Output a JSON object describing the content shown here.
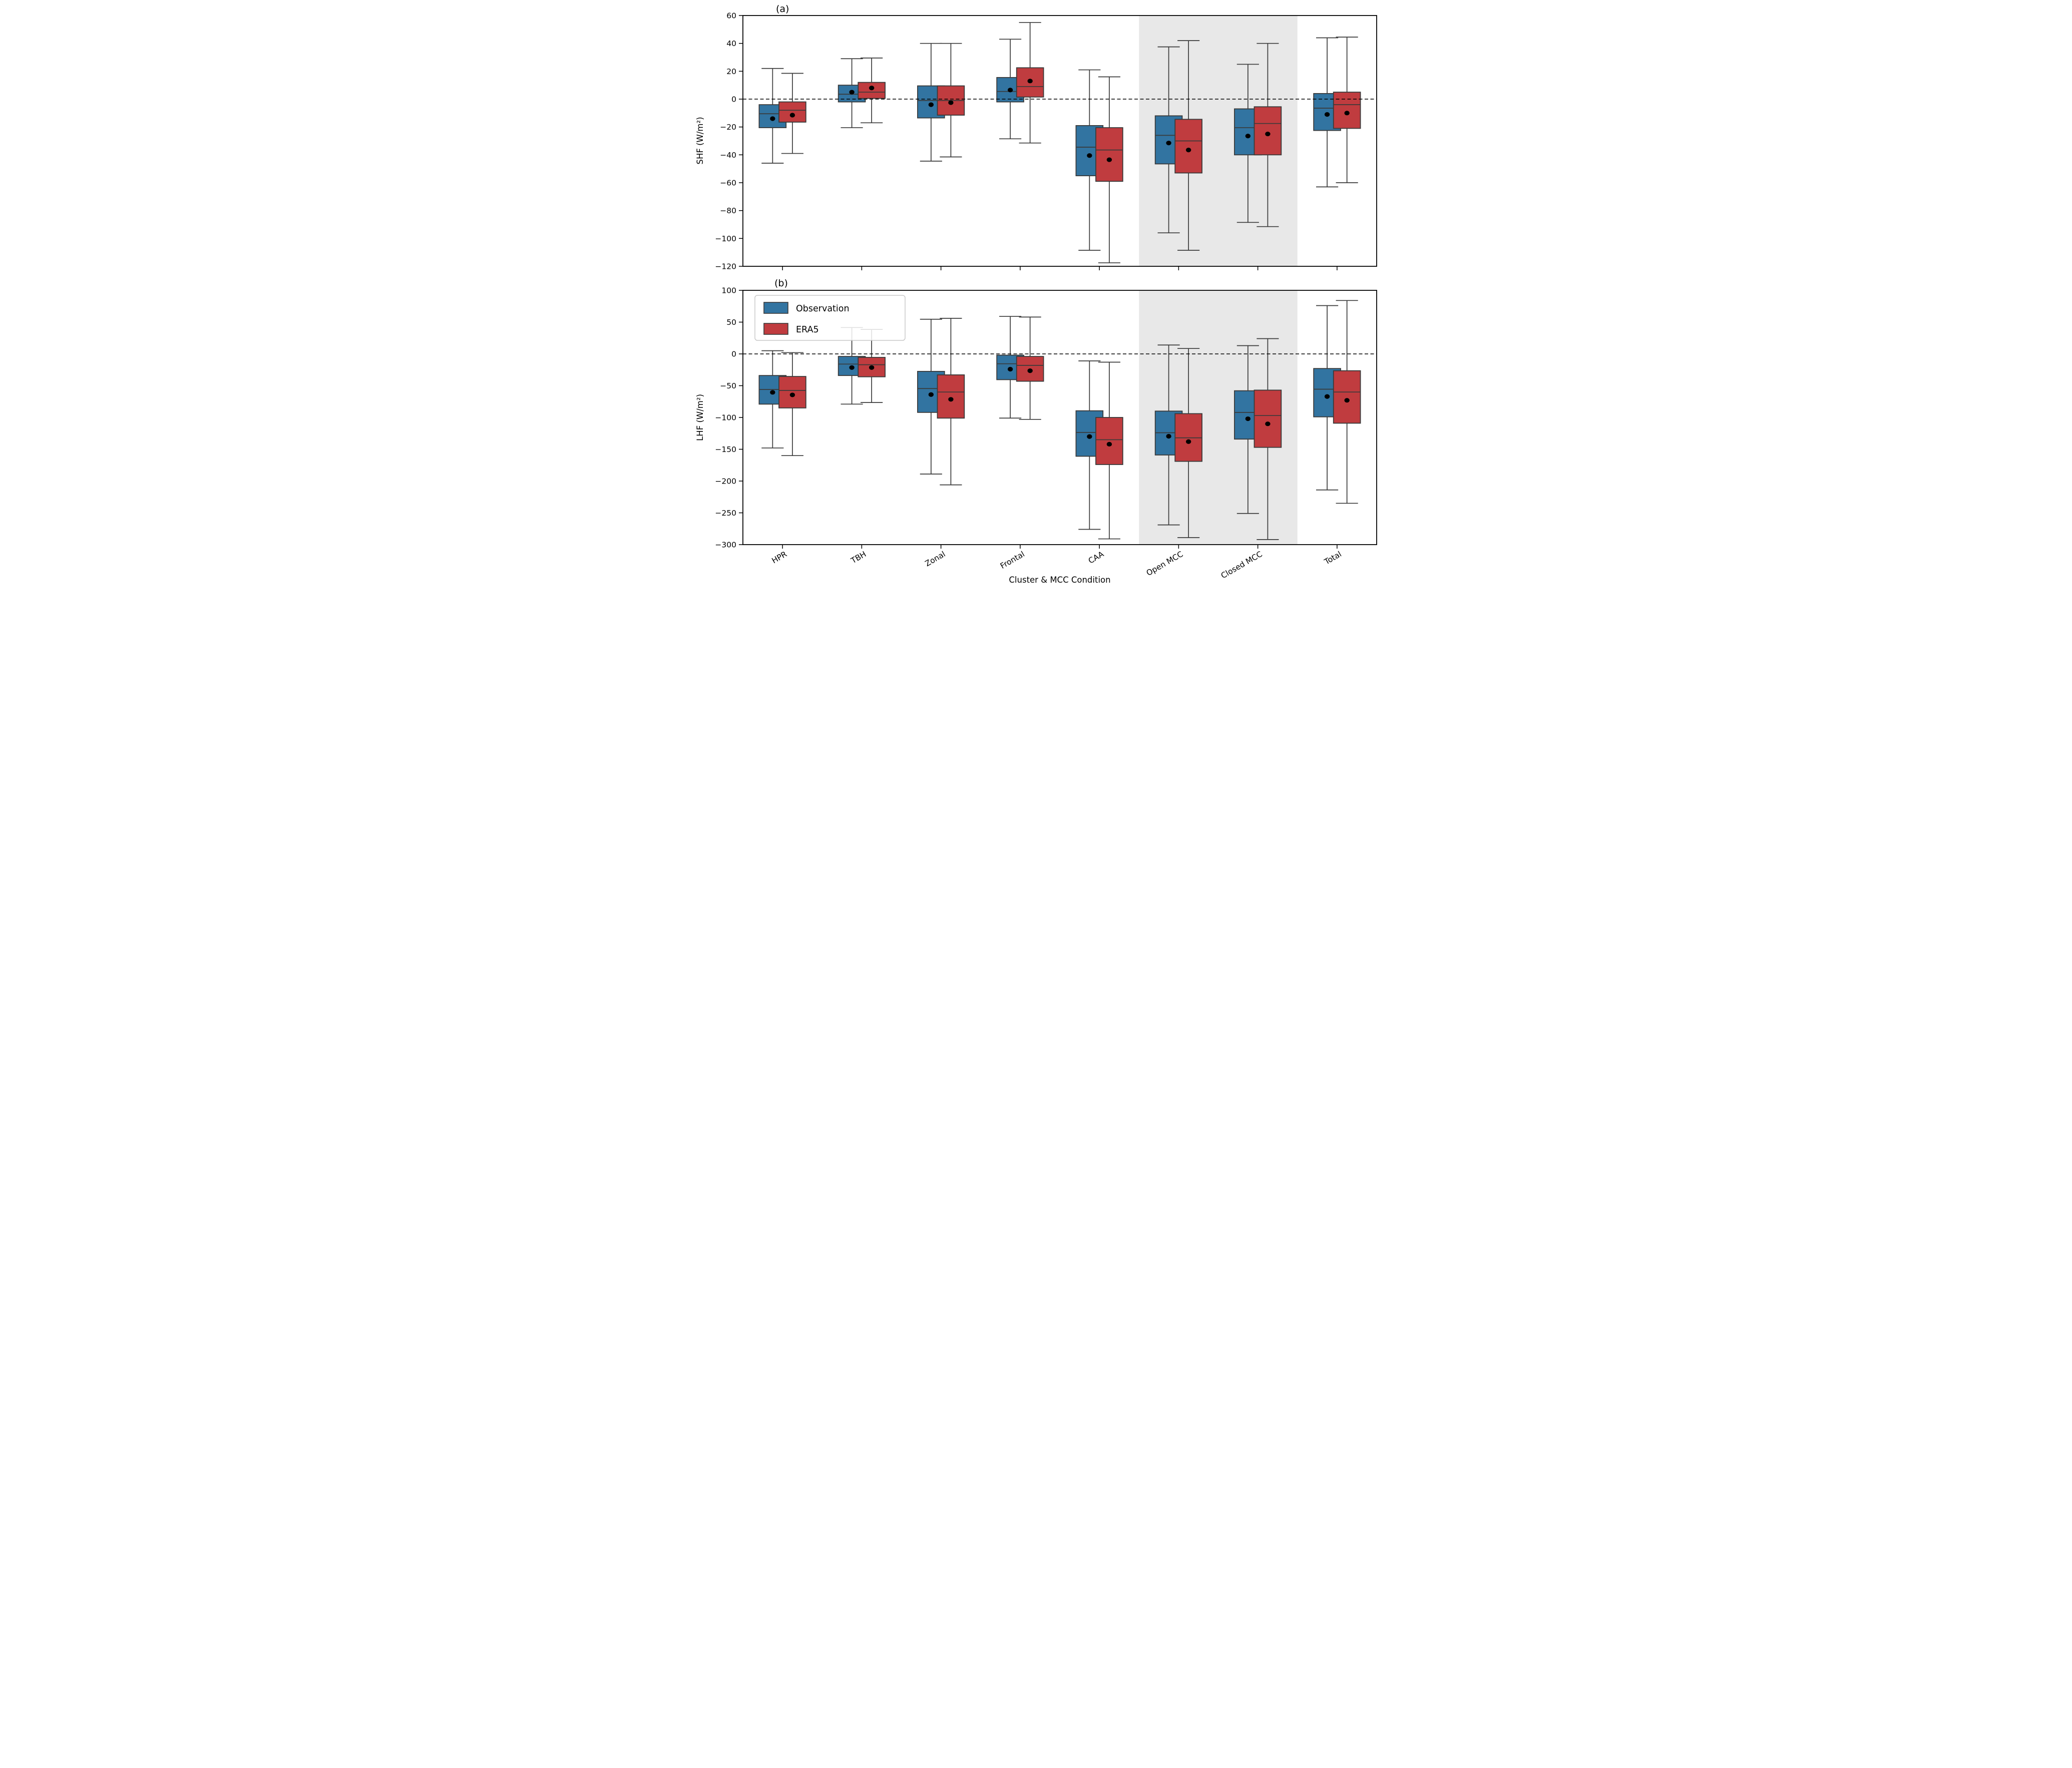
{
  "figure": {
    "xlabel": "Cluster & MCC Condition",
    "categories": [
      "HPR",
      "TBH",
      "Zonal",
      "Frontal",
      "CAA",
      "Open MCC",
      "Closed MCC",
      "Total"
    ],
    "shaded_categories": [
      "Open MCC",
      "Closed MCC"
    ],
    "legend": {
      "items": [
        {
          "label": "Observation",
          "color": "#3274A1"
        },
        {
          "label": "ERA5",
          "color": "#C03C3F"
        }
      ]
    },
    "colors": {
      "observation": "#3274A1",
      "era5": "#C03C3F",
      "box_edge": "#3A3A3A",
      "whisker": "#3A3A3A",
      "median_line": "#3A3A3A",
      "mean_dot": "#000000",
      "zero_line": "#000000",
      "shaded_band": "#E8E8E8",
      "spine": "#000000"
    }
  },
  "chart_data": [
    {
      "type": "boxplot",
      "panel_label": "(a)",
      "ylabel": "SHF (W/m²)",
      "ylim": [
        -120,
        60
      ],
      "yticks": [
        60,
        40,
        20,
        0,
        -20,
        -40,
        -60,
        -80,
        -100,
        -120
      ],
      "zero_line": 0,
      "grid": false,
      "legend_position": "none",
      "categories": [
        "HPR",
        "TBH",
        "Zonal",
        "Frontal",
        "CAA",
        "Open MCC",
        "Closed MCC",
        "Total"
      ],
      "series": [
        {
          "name": "Observation",
          "color": "#3274A1",
          "boxes": [
            {
              "whislo": -46,
              "q1": -20.5,
              "med": -10.5,
              "q3": -4,
              "whishi": 22,
              "mean": -14
            },
            {
              "whislo": -20.5,
              "q1": -2,
              "med": 3.5,
              "q3": 10,
              "whishi": 29,
              "mean": 5
            },
            {
              "whislo": -44.5,
              "q1": -13.5,
              "med": -1,
              "q3": 9.5,
              "whishi": 40,
              "mean": -4
            },
            {
              "whislo": -28.5,
              "q1": -2,
              "med": 5.5,
              "q3": 15.5,
              "whishi": 43,
              "mean": 6.5
            },
            {
              "whislo": -108.5,
              "q1": -55,
              "med": -34.5,
              "q3": -19,
              "whishi": 21,
              "mean": -40.5
            },
            {
              "whislo": -96,
              "q1": -46.5,
              "med": -26,
              "q3": -12,
              "whishi": 37.5,
              "mean": -31.5
            },
            {
              "whislo": -88.5,
              "q1": -40,
              "med": -20.5,
              "q3": -7,
              "whishi": 25,
              "mean": -26.5
            },
            {
              "whislo": -63,
              "q1": -22.5,
              "med": -6.5,
              "q3": 4,
              "whishi": 44,
              "mean": -11
            }
          ]
        },
        {
          "name": "ERA5",
          "color": "#C03C3F",
          "boxes": [
            {
              "whislo": -39,
              "q1": -16.5,
              "med": -8,
              "q3": -2,
              "whishi": 18.5,
              "mean": -11.5
            },
            {
              "whislo": -17,
              "q1": 0.5,
              "med": 5,
              "q3": 12,
              "whishi": 29.5,
              "mean": 8
            },
            {
              "whislo": -41.5,
              "q1": -11.5,
              "med": -1,
              "q3": 9.5,
              "whishi": 40,
              "mean": -2.5
            },
            {
              "whislo": -31.5,
              "q1": 1.5,
              "med": 9,
              "q3": 22.5,
              "whishi": 55,
              "mean": 13
            },
            {
              "whislo": -117.5,
              "q1": -59,
              "med": -36.5,
              "q3": -20.5,
              "whishi": 16,
              "mean": -43.5
            },
            {
              "whislo": -108.5,
              "q1": -53,
              "med": -30,
              "q3": -14.5,
              "whishi": 42,
              "mean": -36.5
            },
            {
              "whislo": -91.5,
              "q1": -40,
              "med": -17.5,
              "q3": -5.5,
              "whishi": 40,
              "mean": -25
            },
            {
              "whislo": -60,
              "q1": -21,
              "med": -4,
              "q3": 5,
              "whishi": 44.5,
              "mean": -10
            }
          ]
        }
      ]
    },
    {
      "type": "boxplot",
      "panel_label": "(b)",
      "ylabel": "LHF (W/m²)",
      "ylim": [
        -300,
        100
      ],
      "yticks": [
        100,
        50,
        0,
        -50,
        -100,
        -150,
        -200,
        -250,
        -300
      ],
      "zero_line": 0,
      "grid": false,
      "legend_position": "upper left",
      "categories": [
        "HPR",
        "TBH",
        "Zonal",
        "Frontal",
        "CAA",
        "Open MCC",
        "Closed MCC",
        "Total"
      ],
      "series": [
        {
          "name": "Observation",
          "color": "#3274A1",
          "boxes": [
            {
              "whislo": -148,
              "q1": -79,
              "med": -56,
              "q3": -34,
              "whishi": 5,
              "mean": -60.5
            },
            {
              "whislo": -79,
              "q1": -34,
              "med": -16,
              "q3": -4,
              "whishi": 41.5,
              "mean": -21.5
            },
            {
              "whislo": -189,
              "q1": -92,
              "med": -54.5,
              "q3": -27.5,
              "whishi": 54.5,
              "mean": -64
            },
            {
              "whislo": -101,
              "q1": -40.5,
              "med": -15.5,
              "q3": -2,
              "whishi": 59,
              "mean": -24
            },
            {
              "whislo": -276,
              "q1": -161,
              "med": -123.5,
              "q3": -89.5,
              "whishi": -11,
              "mean": -130
            },
            {
              "whislo": -269,
              "q1": -159,
              "med": -124,
              "q3": -90,
              "whishi": 14,
              "mean": -129.5
            },
            {
              "whislo": -251,
              "q1": -134,
              "med": -92,
              "q3": -58,
              "whishi": 13,
              "mean": -102
            },
            {
              "whislo": -214,
              "q1": -99,
              "med": -55.5,
              "q3": -23,
              "whishi": 76,
              "mean": -67
            }
          ]
        },
        {
          "name": "ERA5",
          "color": "#C03C3F",
          "boxes": [
            {
              "whislo": -160,
              "q1": -85,
              "med": -57.5,
              "q3": -35.5,
              "whishi": 2,
              "mean": -64.5
            },
            {
              "whislo": -76.5,
              "q1": -36,
              "med": -17,
              "q3": -5.5,
              "whishi": 38.5,
              "mean": -21.5
            },
            {
              "whislo": -206,
              "q1": -101,
              "med": -60,
              "q3": -33,
              "whishi": 56,
              "mean": -71.5
            },
            {
              "whislo": -103,
              "q1": -43,
              "med": -18,
              "q3": -4,
              "whishi": 58,
              "mean": -26.5
            },
            {
              "whislo": -291,
              "q1": -174,
              "med": -135,
              "q3": -100,
              "whishi": -13,
              "mean": -142
            },
            {
              "whislo": -289,
              "q1": -169,
              "med": -132,
              "q3": -94,
              "whishi": 8.5,
              "mean": -138
            },
            {
              "whislo": -292,
              "q1": -147,
              "med": -97,
              "q3": -57,
              "whishi": 24,
              "mean": -110
            },
            {
              "whislo": -235,
              "q1": -109,
              "med": -60,
              "q3": -26.5,
              "whishi": 84,
              "mean": -73
            }
          ]
        }
      ]
    }
  ]
}
